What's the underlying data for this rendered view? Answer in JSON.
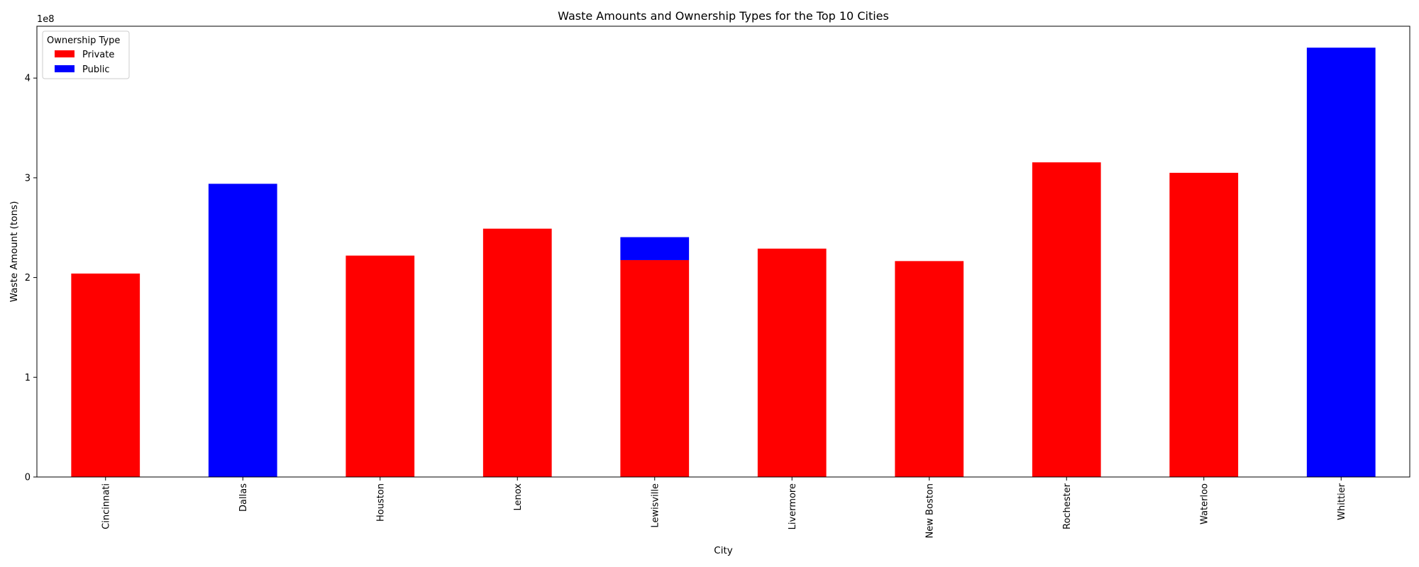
{
  "chart_data": {
    "type": "bar",
    "stacked": true,
    "title": "Waste Amounts and Ownership Types for the Top 10 Cities",
    "xlabel": "City",
    "ylabel": "Waste Amount (tons)",
    "y_offset_label": "1e8",
    "ylim": [
      0,
      452000000
    ],
    "y_ticks": [
      0,
      100000000,
      200000000,
      300000000,
      400000000
    ],
    "y_tick_labels": [
      "0",
      "1",
      "2",
      "3",
      "4"
    ],
    "grid": false,
    "categories": [
      "Cincinnati",
      "Dallas",
      "Houston",
      "Lenox",
      "Lewisville",
      "Livermore",
      "New Boston",
      "Rochester",
      "Waterloo",
      "Whittier"
    ],
    "series": [
      {
        "name": "Private",
        "color": "#ff0000",
        "values": [
          204000000,
          0,
          222000000,
          249000000,
          217500000,
          229000000,
          216500000,
          315500000,
          305000000,
          0
        ]
      },
      {
        "name": "Public",
        "color": "#0000ff",
        "values": [
          0,
          294000000,
          0,
          0,
          23000000,
          0,
          0,
          0,
          0,
          430500000
        ]
      }
    ],
    "legend": {
      "title": "Ownership Type",
      "position": "top-left"
    }
  }
}
